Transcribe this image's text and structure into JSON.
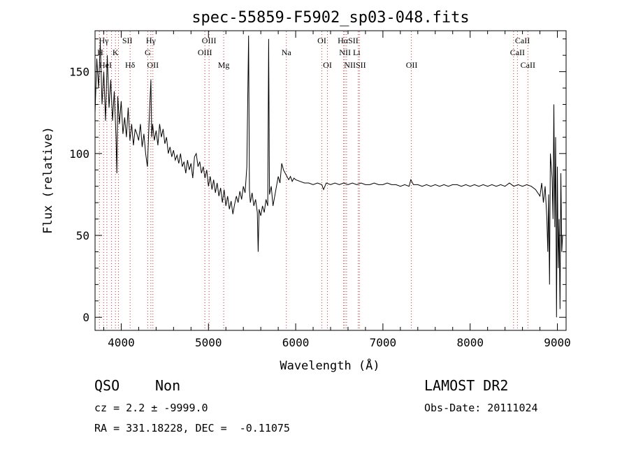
{
  "chart_data": {
    "type": "line",
    "title": "spec-55859-F5902_sp03-048.fits",
    "xlabel": "Wavelength (Å)",
    "ylabel": "Flux (relative)",
    "xlim": [
      3700,
      9100
    ],
    "ylim": [
      -8,
      175
    ],
    "xticks": [
      4000,
      5000,
      6000,
      7000,
      8000,
      9000
    ],
    "yticks": [
      0,
      50,
      100,
      150
    ],
    "grid": false,
    "series": [
      {
        "points": [
          [
            3700,
            125
          ],
          [
            3720,
            158
          ],
          [
            3740,
            140
          ],
          [
            3760,
            168
          ],
          [
            3780,
            130
          ],
          [
            3800,
            150
          ],
          [
            3820,
            120
          ],
          [
            3840,
            160
          ],
          [
            3860,
            128
          ],
          [
            3880,
            145
          ],
          [
            3900,
            120
          ],
          [
            3920,
            138
          ],
          [
            3940,
            110
          ],
          [
            3950,
            88
          ],
          [
            3960,
            135
          ],
          [
            3980,
            118
          ],
          [
            4000,
            132
          ],
          [
            4020,
            112
          ],
          [
            4040,
            122
          ],
          [
            4060,
            110
          ],
          [
            4080,
            128
          ],
          [
            4100,
            108
          ],
          [
            4120,
            118
          ],
          [
            4140,
            105
          ],
          [
            4160,
            115
          ],
          [
            4180,
            112
          ],
          [
            4200,
            108
          ],
          [
            4220,
            118
          ],
          [
            4240,
            104
          ],
          [
            4260,
            112
          ],
          [
            4280,
            100
          ],
          [
            4300,
            92
          ],
          [
            4320,
            120
          ],
          [
            4340,
            145
          ],
          [
            4350,
            110
          ],
          [
            4360,
            118
          ],
          [
            4380,
            108
          ],
          [
            4400,
            114
          ],
          [
            4420,
            105
          ],
          [
            4440,
            118
          ],
          [
            4460,
            110
          ],
          [
            4480,
            115
          ],
          [
            4500,
            106
          ],
          [
            4520,
            110
          ],
          [
            4540,
            100
          ],
          [
            4560,
            104
          ],
          [
            4580,
            98
          ],
          [
            4600,
            102
          ],
          [
            4620,
            96
          ],
          [
            4640,
            99
          ],
          [
            4660,
            94
          ],
          [
            4680,
            100
          ],
          [
            4700,
            92
          ],
          [
            4720,
            95
          ],
          [
            4740,
            88
          ],
          [
            4760,
            96
          ],
          [
            4780,
            90
          ],
          [
            4800,
            94
          ],
          [
            4820,
            85
          ],
          [
            4840,
            98
          ],
          [
            4860,
            100
          ],
          [
            4880,
            92
          ],
          [
            4900,
            95
          ],
          [
            4920,
            88
          ],
          [
            4940,
            92
          ],
          [
            4960,
            85
          ],
          [
            4980,
            90
          ],
          [
            5000,
            80
          ],
          [
            5020,
            86
          ],
          [
            5040,
            78
          ],
          [
            5060,
            84
          ],
          [
            5080,
            76
          ],
          [
            5100,
            82
          ],
          [
            5120,
            74
          ],
          [
            5140,
            79
          ],
          [
            5160,
            70
          ],
          [
            5180,
            78
          ],
          [
            5200,
            68
          ],
          [
            5220,
            74
          ],
          [
            5240,
            66
          ],
          [
            5260,
            71
          ],
          [
            5280,
            63
          ],
          [
            5300,
            69
          ],
          [
            5320,
            74
          ],
          [
            5340,
            70
          ],
          [
            5360,
            77
          ],
          [
            5380,
            72
          ],
          [
            5400,
            80
          ],
          [
            5420,
            76
          ],
          [
            5440,
            92
          ],
          [
            5460,
            172
          ],
          [
            5470,
            78
          ],
          [
            5480,
            70
          ],
          [
            5500,
            76
          ],
          [
            5520,
            68
          ],
          [
            5540,
            72
          ],
          [
            5560,
            64
          ],
          [
            5570,
            40
          ],
          [
            5580,
            66
          ],
          [
            5600,
            62
          ],
          [
            5620,
            68
          ],
          [
            5640,
            64
          ],
          [
            5660,
            72
          ],
          [
            5680,
            68
          ],
          [
            5690,
            170
          ],
          [
            5700,
            75
          ],
          [
            5720,
            80
          ],
          [
            5740,
            68
          ],
          [
            5760,
            74
          ],
          [
            5780,
            80
          ],
          [
            5800,
            86
          ],
          [
            5820,
            82
          ],
          [
            5840,
            94
          ],
          [
            5860,
            90
          ],
          [
            5880,
            88
          ],
          [
            5900,
            86
          ],
          [
            5920,
            84
          ],
          [
            5940,
            86
          ],
          [
            5960,
            83
          ],
          [
            5980,
            85
          ],
          [
            6000,
            84
          ],
          [
            6050,
            83
          ],
          [
            6100,
            82
          ],
          [
            6150,
            82
          ],
          [
            6200,
            81
          ],
          [
            6250,
            82
          ],
          [
            6300,
            81
          ],
          [
            6320,
            78
          ],
          [
            6350,
            82
          ],
          [
            6400,
            81
          ],
          [
            6450,
            82
          ],
          [
            6500,
            81
          ],
          [
            6550,
            82
          ],
          [
            6600,
            81
          ],
          [
            6650,
            82
          ],
          [
            6700,
            81
          ],
          [
            6750,
            82
          ],
          [
            6800,
            81
          ],
          [
            6850,
            81
          ],
          [
            6900,
            82
          ],
          [
            6950,
            81
          ],
          [
            7000,
            81
          ],
          [
            7050,
            82
          ],
          [
            7100,
            81
          ],
          [
            7150,
            81
          ],
          [
            7200,
            80
          ],
          [
            7250,
            81
          ],
          [
            7300,
            80
          ],
          [
            7320,
            84
          ],
          [
            7350,
            81
          ],
          [
            7400,
            81
          ],
          [
            7450,
            80
          ],
          [
            7500,
            81
          ],
          [
            7550,
            80
          ],
          [
            7600,
            81
          ],
          [
            7650,
            80
          ],
          [
            7700,
            81
          ],
          [
            7750,
            80
          ],
          [
            7800,
            81
          ],
          [
            7850,
            81
          ],
          [
            7900,
            80
          ],
          [
            7950,
            81
          ],
          [
            8000,
            80
          ],
          [
            8050,
            81
          ],
          [
            8100,
            80
          ],
          [
            8150,
            81
          ],
          [
            8200,
            80
          ],
          [
            8250,
            81
          ],
          [
            8300,
            80
          ],
          [
            8350,
            81
          ],
          [
            8400,
            80
          ],
          [
            8450,
            82
          ],
          [
            8500,
            80
          ],
          [
            8550,
            81
          ],
          [
            8600,
            80
          ],
          [
            8650,
            81
          ],
          [
            8700,
            80
          ],
          [
            8750,
            78
          ],
          [
            8800,
            74
          ],
          [
            8820,
            82
          ],
          [
            8840,
            70
          ],
          [
            8860,
            80
          ],
          [
            8880,
            60
          ],
          [
            8890,
            40
          ],
          [
            8900,
            75
          ],
          [
            8910,
            20
          ],
          [
            8920,
            100
          ],
          [
            8940,
            85
          ],
          [
            8950,
            60
          ],
          [
            8960,
            130
          ],
          [
            8970,
            55
          ],
          [
            8980,
            110
          ],
          [
            8990,
            0
          ],
          [
            9000,
            92
          ],
          [
            9010,
            30
          ],
          [
            9020,
            60
          ],
          [
            9030,
            5
          ],
          [
            9040,
            88
          ],
          [
            9050,
            40
          ],
          [
            9060,
            50
          ]
        ]
      }
    ],
    "spectral_lines": [
      {
        "label": "Hγ",
        "x": 3800,
        "row": 0
      },
      {
        "label": "SII",
        "x": 4070,
        "row": 0
      },
      {
        "label": "Hγ",
        "x": 4340,
        "row": 0
      },
      {
        "label": "OIII",
        "x": 5007,
        "row": 0
      },
      {
        "label": "OI",
        "x": 6300,
        "row": 0
      },
      {
        "label": "HαSII",
        "x": 6600,
        "row": 0
      },
      {
        "label": "CaII",
        "x": 8600,
        "row": 0
      },
      {
        "label": "H",
        "x": 3760,
        "row": 1
      },
      {
        "label": "K",
        "x": 3934,
        "row": 1
      },
      {
        "label": "G",
        "x": 4304,
        "row": 1
      },
      {
        "label": "OIII",
        "x": 4959,
        "row": 1
      },
      {
        "label": "Na",
        "x": 5893,
        "row": 1
      },
      {
        "label": "NII Li",
        "x": 6620,
        "row": 1
      },
      {
        "label": "CaII",
        "x": 8542,
        "row": 1
      },
      {
        "label": "HeI",
        "x": 3820,
        "row": 2
      },
      {
        "label": "Hδ",
        "x": 4102,
        "row": 2
      },
      {
        "label": "OII",
        "x": 4363,
        "row": 2
      },
      {
        "label": "Mg",
        "x": 5175,
        "row": 2
      },
      {
        "label": "OI",
        "x": 6364,
        "row": 2
      },
      {
        "label": "NIISII",
        "x": 6680,
        "row": 2
      },
      {
        "label": "OII",
        "x": 7330,
        "row": 2
      },
      {
        "label": "CaII",
        "x": 8662,
        "row": 2
      }
    ],
    "line_positions": [
      3750,
      3798,
      3835,
      3889,
      3934,
      3969,
      4102,
      4304,
      4340,
      4363,
      4959,
      5007,
      5175,
      5893,
      6300,
      6364,
      6548,
      6563,
      6583,
      6717,
      6731,
      7325,
      8498,
      8542,
      8662
    ]
  },
  "info": {
    "class": "QSO",
    "subclass": "Non",
    "survey": "LAMOST DR2",
    "cz": "cz = 2.2 ± -9999.0",
    "obs_date": "Obs-Date: 20111024",
    "coords": "RA = 331.18228, DEC =  -0.11075"
  }
}
